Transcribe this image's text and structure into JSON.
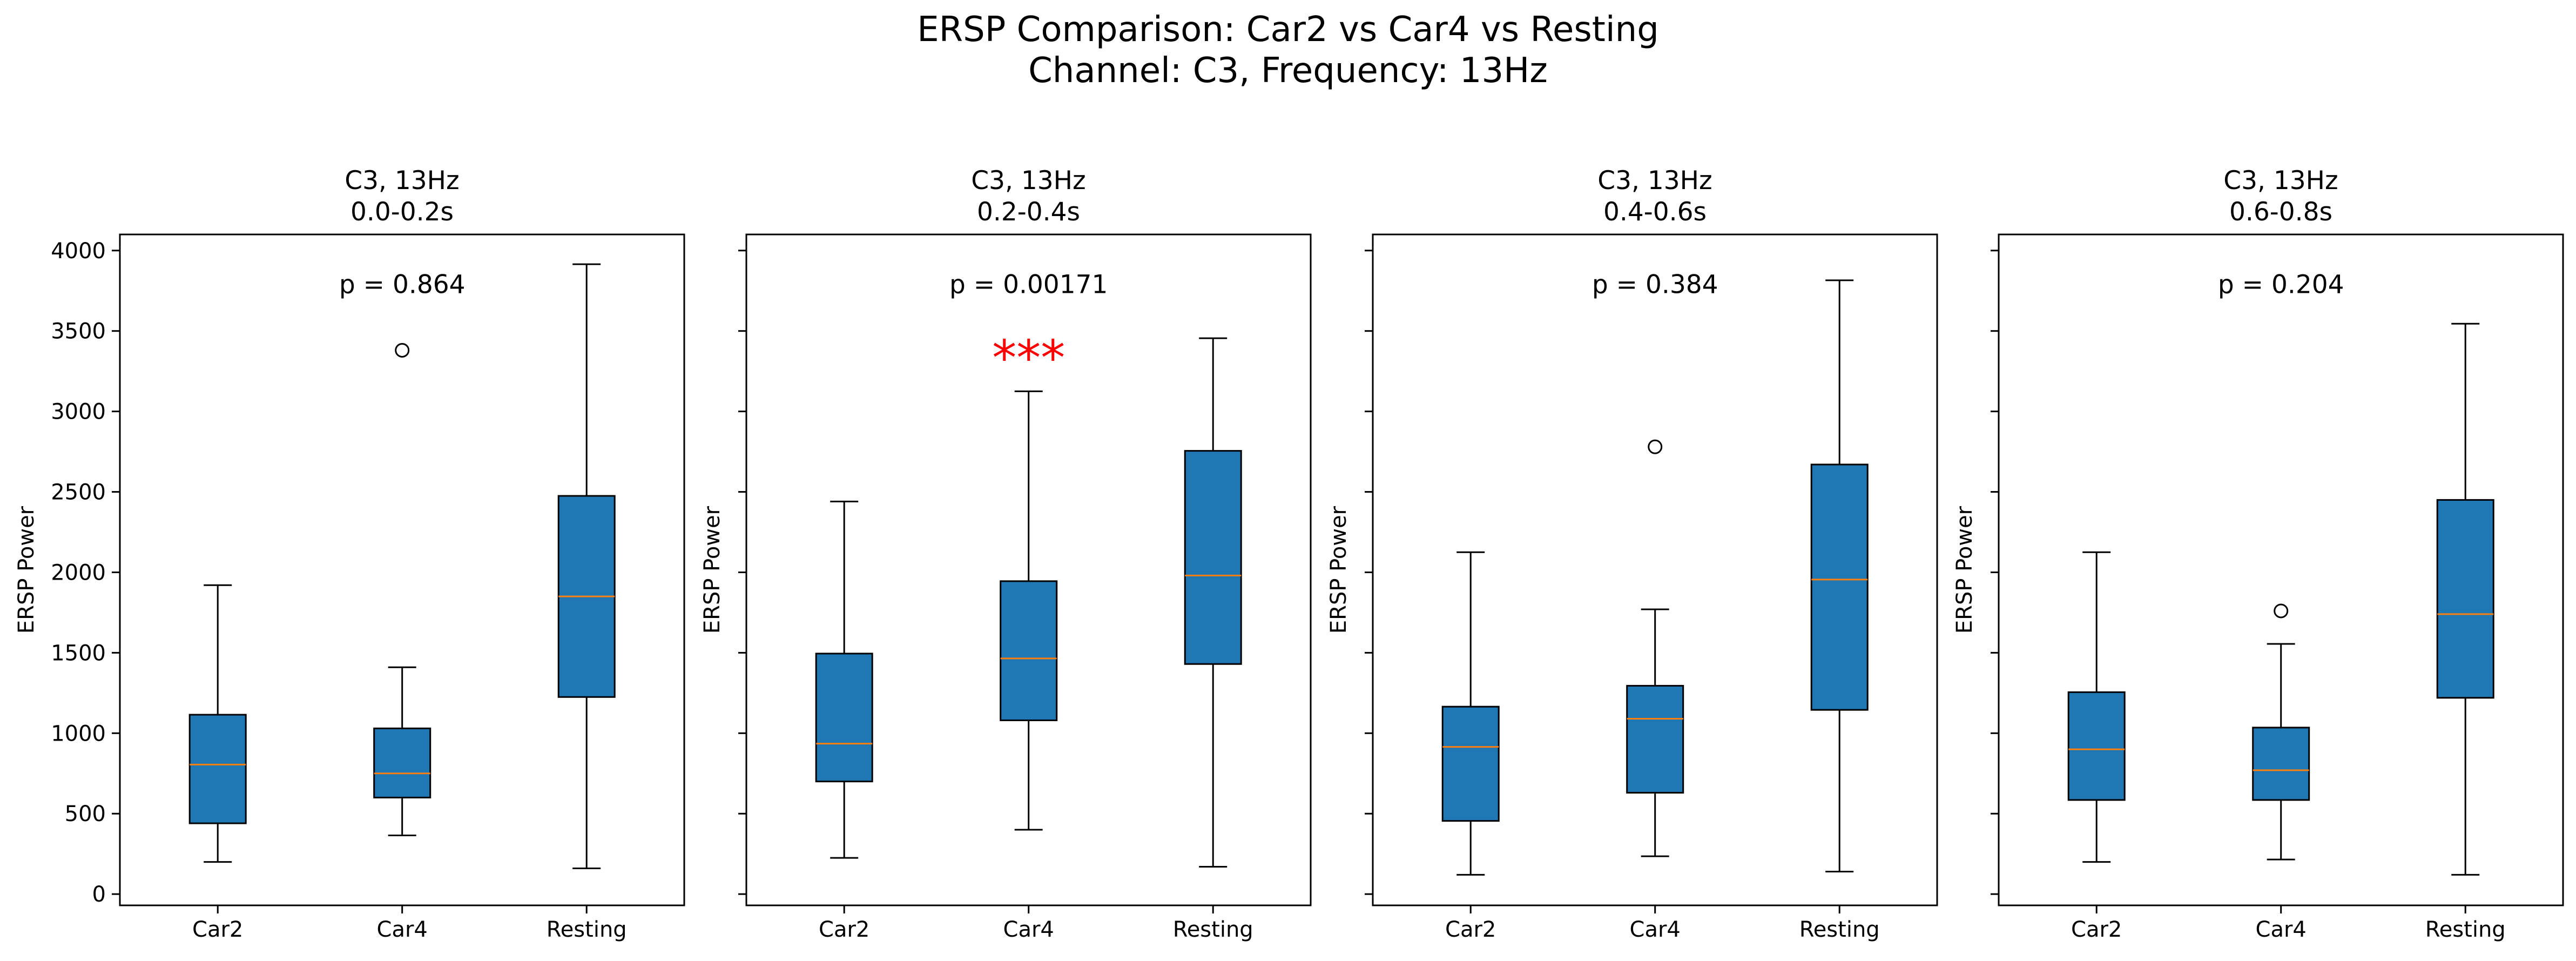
{
  "suptitle_line1": "ERSP Comparison: Car2 vs Car4 vs Resting",
  "suptitle_line2": "Channel: C3, Frequency: 13Hz",
  "colors": {
    "box_fill": "#1f77b4",
    "median": "#ff7f0e",
    "significance": "#ff0000",
    "line": "#000000"
  },
  "chart_data": [
    {
      "type": "box",
      "title_line1": "C3, 13Hz",
      "title_line2": "0.0-0.2s",
      "ylabel": "ERSP Power",
      "p_text": "p = 0.864",
      "significance": "",
      "ylim": [
        -70,
        4100
      ],
      "yticks": [
        0,
        500,
        1000,
        1500,
        2000,
        2500,
        3000,
        3500,
        4000
      ],
      "categories": [
        "Car2",
        "Car4",
        "Resting"
      ],
      "boxes": [
        {
          "whislo": 200,
          "q1": 440,
          "med": 805,
          "q3": 1115,
          "whishi": 1920,
          "fliers": []
        },
        {
          "whislo": 365,
          "q1": 600,
          "med": 750,
          "q3": 1030,
          "whishi": 1410,
          "fliers": [
            3380
          ]
        },
        {
          "whislo": 160,
          "q1": 1225,
          "med": 1850,
          "q3": 2475,
          "whishi": 3915,
          "fliers": []
        }
      ]
    },
    {
      "type": "box",
      "title_line1": "C3, 13Hz",
      "title_line2": "0.2-0.4s",
      "ylabel": "ERSP Power",
      "p_text": "p = 0.00171",
      "significance": "***",
      "ylim": [
        -70,
        4100
      ],
      "yticks": [
        0,
        500,
        1000,
        1500,
        2000,
        2500,
        3000,
        3500,
        4000
      ],
      "categories": [
        "Car2",
        "Car4",
        "Resting"
      ],
      "boxes": [
        {
          "whislo": 225,
          "q1": 700,
          "med": 935,
          "q3": 1495,
          "whishi": 2440,
          "fliers": []
        },
        {
          "whislo": 400,
          "q1": 1080,
          "med": 1465,
          "q3": 1945,
          "whishi": 3125,
          "fliers": []
        },
        {
          "whislo": 170,
          "q1": 1430,
          "med": 1980,
          "q3": 2755,
          "whishi": 3455,
          "fliers": []
        }
      ]
    },
    {
      "type": "box",
      "title_line1": "C3, 13Hz",
      "title_line2": "0.4-0.6s",
      "ylabel": "ERSP Power",
      "p_text": "p = 0.384",
      "significance": "",
      "ylim": [
        -70,
        4100
      ],
      "yticks": [
        0,
        500,
        1000,
        1500,
        2000,
        2500,
        3000,
        3500,
        4000
      ],
      "categories": [
        "Car2",
        "Car4",
        "Resting"
      ],
      "boxes": [
        {
          "whislo": 120,
          "q1": 455,
          "med": 915,
          "q3": 1165,
          "whishi": 2125,
          "fliers": []
        },
        {
          "whislo": 235,
          "q1": 630,
          "med": 1090,
          "q3": 1295,
          "whishi": 1770,
          "fliers": [
            2780
          ]
        },
        {
          "whislo": 140,
          "q1": 1145,
          "med": 1955,
          "q3": 2670,
          "whishi": 3815,
          "fliers": []
        }
      ]
    },
    {
      "type": "box",
      "title_line1": "C3, 13Hz",
      "title_line2": "0.6-0.8s",
      "ylabel": "ERSP Power",
      "p_text": "p = 0.204",
      "significance": "",
      "ylim": [
        -70,
        4100
      ],
      "yticks": [
        0,
        500,
        1000,
        1500,
        2000,
        2500,
        3000,
        3500,
        4000
      ],
      "categories": [
        "Car2",
        "Car4",
        "Resting"
      ],
      "boxes": [
        {
          "whislo": 200,
          "q1": 585,
          "med": 900,
          "q3": 1255,
          "whishi": 2125,
          "fliers": []
        },
        {
          "whislo": 215,
          "q1": 585,
          "med": 770,
          "q3": 1035,
          "whishi": 1555,
          "fliers": [
            1760
          ]
        },
        {
          "whislo": 120,
          "q1": 1220,
          "med": 1740,
          "q3": 2450,
          "whishi": 3545,
          "fliers": []
        }
      ]
    }
  ]
}
